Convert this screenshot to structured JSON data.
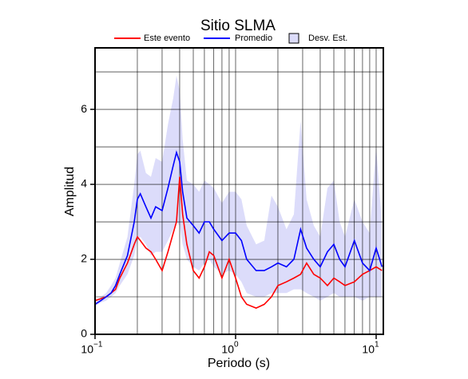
{
  "chart_data": {
    "type": "line",
    "title": "Sitio SLMA",
    "x_label": "Periodo (s)",
    "y_label": "Amplitud",
    "log_x": true,
    "grid": true,
    "xlim": [
      0.1,
      11.25
    ],
    "ylim": [
      0,
      7.64
    ],
    "xticks": [
      {
        "value": 0.1,
        "label": "10",
        "exponent": "−1"
      },
      {
        "value": 1,
        "label": "10",
        "exponent": "0"
      },
      {
        "value": 10,
        "label": "10",
        "exponent": "1"
      }
    ],
    "minor_xticks": [
      0.2,
      0.3,
      0.4,
      0.5,
      0.6,
      0.7,
      0.8,
      0.9,
      2,
      3,
      4,
      5,
      6,
      7,
      8,
      9
    ],
    "yticks": [
      0,
      2,
      4,
      6
    ],
    "minor_yticks": [
      1,
      3,
      5,
      7
    ],
    "x": [
      0.1,
      0.11,
      0.12,
      0.13,
      0.14,
      0.15,
      0.17,
      0.19,
      0.2,
      0.21,
      0.23,
      0.25,
      0.27,
      0.3,
      0.33,
      0.36,
      0.38,
      0.4,
      0.42,
      0.45,
      0.5,
      0.55,
      0.6,
      0.65,
      0.7,
      0.8,
      0.9,
      1.0,
      1.1,
      1.2,
      1.4,
      1.6,
      1.8,
      2.0,
      2.3,
      2.6,
      2.9,
      3.2,
      3.6,
      4,
      4.5,
      5,
      5.5,
      6,
      7,
      8,
      9,
      10,
      11
    ],
    "band": {
      "name": "Desv. Est.",
      "color": "#dcdcfa",
      "lower": [
        0.75,
        0.85,
        0.9,
        1.0,
        1.1,
        1.3,
        1.6,
        2.1,
        2.5,
        2.6,
        2.4,
        2.1,
        2.2,
        2.2,
        2.5,
        2.8,
        3.0,
        2.9,
        2.4,
        2.0,
        1.8,
        1.7,
        1.9,
        2.0,
        1.8,
        1.6,
        1.7,
        1.6,
        1.4,
        1.1,
        1.0,
        1.0,
        1.1,
        1.1,
        1.1,
        1.2,
        1.2,
        1.1,
        1.0,
        0.9,
        1.0,
        1.1,
        1.0,
        1.0,
        1.0,
        0.9,
        1.0,
        1.0,
        1.0
      ],
      "upper": [
        0.9,
        1.0,
        1.1,
        1.3,
        1.5,
        1.9,
        2.6,
        4.0,
        4.8,
        4.9,
        4.3,
        4.2,
        4.7,
        4.6,
        5.6,
        6.3,
        6.9,
        6.5,
        5.2,
        4.1,
        4.0,
        3.8,
        4.1,
        4.0,
        3.9,
        3.5,
        3.8,
        3.8,
        3.6,
        2.9,
        2.4,
        2.5,
        3.7,
        3.4,
        2.8,
        3.2,
        5.7,
        3.6,
        2.9,
        2.6,
        3.9,
        4.1,
        3.0,
        2.6,
        3.6,
        3.0,
        2.7,
        5.0,
        2.9
      ]
    },
    "series": [
      {
        "name": "Este evento",
        "color": "#ff0000",
        "values": [
          0.9,
          0.95,
          1.0,
          1.1,
          1.2,
          1.5,
          1.9,
          2.4,
          2.6,
          2.5,
          2.3,
          2.2,
          2.0,
          1.7,
          2.2,
          2.7,
          3.0,
          4.2,
          3.2,
          2.4,
          1.7,
          1.5,
          1.8,
          2.2,
          2.1,
          1.5,
          2.0,
          1.5,
          1.0,
          0.8,
          0.7,
          0.8,
          1.0,
          1.3,
          1.4,
          1.5,
          1.6,
          1.9,
          1.6,
          1.5,
          1.3,
          1.5,
          1.4,
          1.3,
          1.4,
          1.6,
          1.7,
          1.8,
          1.7
        ]
      },
      {
        "name": "Promedio",
        "color": "#0000ff",
        "values": [
          0.8,
          0.9,
          1.0,
          1.1,
          1.3,
          1.6,
          2.1,
          3.0,
          3.6,
          3.75,
          3.4,
          3.1,
          3.4,
          3.3,
          3.9,
          4.5,
          4.85,
          4.6,
          3.8,
          3.1,
          2.9,
          2.7,
          3.0,
          3.0,
          2.8,
          2.5,
          2.7,
          2.7,
          2.5,
          2.0,
          1.7,
          1.7,
          1.8,
          1.9,
          1.8,
          2.0,
          2.8,
          2.3,
          2.0,
          1.8,
          2.2,
          2.4,
          2.0,
          1.8,
          2.5,
          1.9,
          1.7,
          2.3,
          1.8
        ]
      }
    ]
  }
}
